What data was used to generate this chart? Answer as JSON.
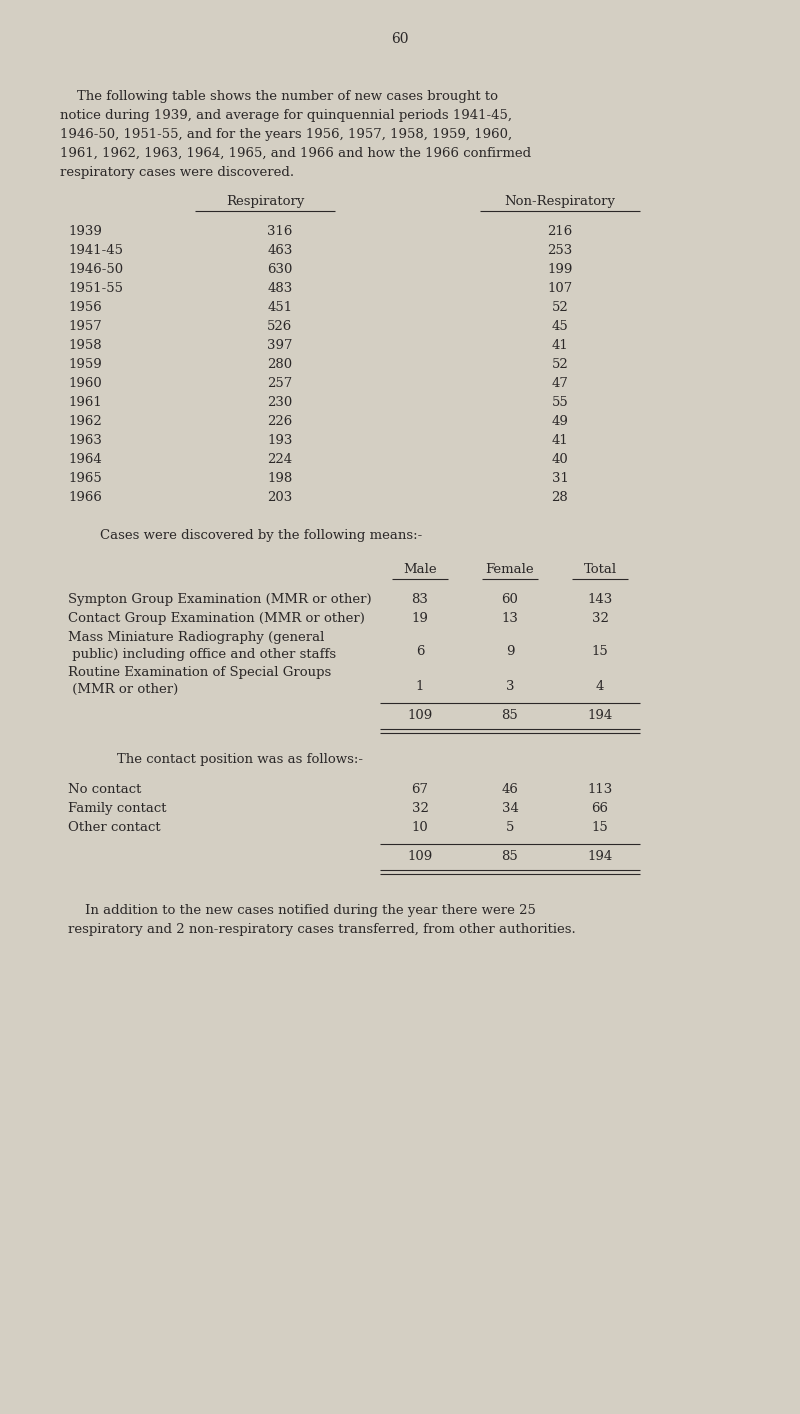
{
  "bg_color": "#d4cfc3",
  "text_color": "#2b2828",
  "page_number": "60",
  "intro_text_lines": [
    "    The following table shows the number of new cases brought to",
    "notice during 1939, and average for quinquennial periods 1941-45,",
    "1946-50, 1951-55, and for the years 1956, 1957, 1958, 1959, 1960,",
    "1961, 1962, 1963, 1964, 1965, and 1966 and how the 1966 confirmed",
    "respiratory cases were discovered."
  ],
  "table1_col1_header": "Respiratory",
  "table1_col2_header": "Non-Respiratory",
  "table1_rows": [
    [
      "1939",
      "316",
      "216"
    ],
    [
      "1941-45",
      "463",
      "253"
    ],
    [
      "1946-50",
      "630",
      "199"
    ],
    [
      "1951-55",
      "483",
      "107"
    ],
    [
      "1956",
      "451",
      "52"
    ],
    [
      "1957",
      "526",
      "45"
    ],
    [
      "1958",
      "397",
      "41"
    ],
    [
      "1959",
      "280",
      "52"
    ],
    [
      "1960",
      "257",
      "47"
    ],
    [
      "1961",
      "230",
      "55"
    ],
    [
      "1962",
      "226",
      "49"
    ],
    [
      "1963",
      "193",
      "41"
    ],
    [
      "1964",
      "224",
      "40"
    ],
    [
      "1965",
      "198",
      "31"
    ],
    [
      "1966",
      "203",
      "28"
    ]
  ],
  "discovery_heading": "Cases were discovered by the following means:-",
  "discovery_col_headers": [
    "Male",
    "Female",
    "Total"
  ],
  "discovery_rows": [
    [
      "Sympton Group Examination (MMR or other)",
      "",
      "83",
      "60",
      "143"
    ],
    [
      "Contact Group Examination (MMR or other)",
      "",
      "19",
      "13",
      "32"
    ],
    [
      "Mass Miniature Radiography (general",
      " public) including office and other staffs",
      "6",
      "9",
      "15"
    ],
    [
      "Routine Examination of Special Groups",
      " (MMR or other)",
      "1",
      "3",
      "4"
    ]
  ],
  "discovery_total": [
    "109",
    "85",
    "194"
  ],
  "contact_heading": "    The contact position was as follows:-",
  "contact_rows": [
    [
      "No contact",
      "67",
      "46",
      "113"
    ],
    [
      "Family contact",
      "32",
      "34",
      "66"
    ],
    [
      "Other contact",
      "10",
      "5",
      "15"
    ]
  ],
  "contact_total": [
    "109",
    "85",
    "194"
  ],
  "footer_lines": [
    "    In addition to the new cases notified during the year there were 25",
    "respiratory and 2 non-respiratory cases transferred, from other authorities."
  ]
}
